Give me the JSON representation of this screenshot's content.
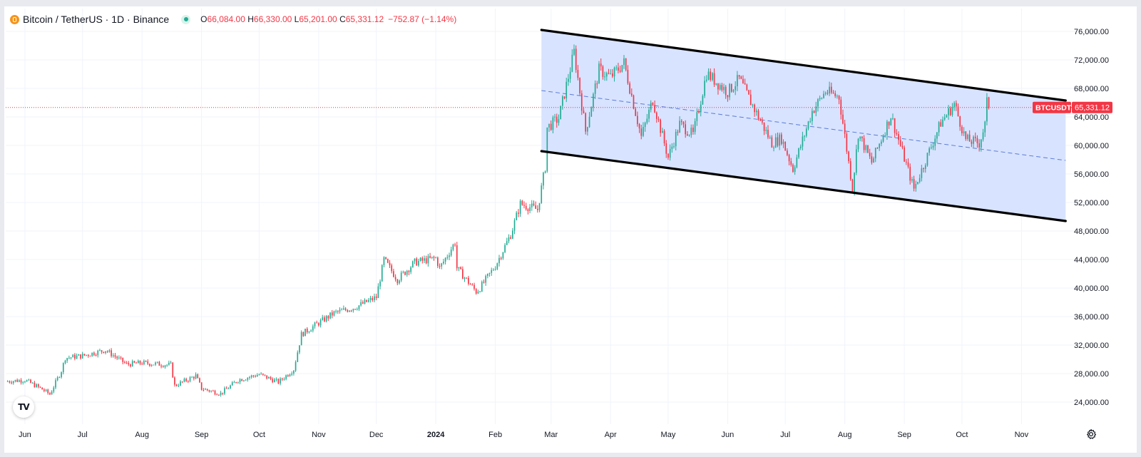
{
  "header": {
    "symbol": "Bitcoin / TetherUS · 1D · Binance",
    "open_label": "O",
    "open": "66,084.00",
    "high_label": "H",
    "high": "66,330.00",
    "low_label": "L",
    "low": "65,201.00",
    "close_label": "C",
    "close": "65,331.12",
    "change": "−752.87 (−1.14%)"
  },
  "price_tag": {
    "symbol": "BTCUSDT",
    "price": "65,331.12"
  },
  "colors": {
    "up": "#22ab94",
    "down": "#f23645",
    "channel_fill": "#d6e2ff",
    "channel_line": "#000000",
    "midline": "#5b7bd5",
    "grid": "#f0f3fa",
    "axis_text": "#131722"
  },
  "icons": {
    "logo": "tradingview-logo-icon",
    "settings": "gear-icon"
  },
  "chart_data": {
    "type": "candlestick",
    "title": "",
    "x_ticks": [
      {
        "label": "Jun",
        "date": "2023-06-01"
      },
      {
        "label": "Jul",
        "date": "2023-07-01"
      },
      {
        "label": "Aug",
        "date": "2023-08-01"
      },
      {
        "label": "Sep",
        "date": "2023-09-01"
      },
      {
        "label": "Oct",
        "date": "2023-10-01"
      },
      {
        "label": "Nov",
        "date": "2023-11-01"
      },
      {
        "label": "Dec",
        "date": "2023-12-01"
      },
      {
        "label": "2024",
        "date": "2024-01-01",
        "bold": true
      },
      {
        "label": "Feb",
        "date": "2024-02-01"
      },
      {
        "label": "Mar",
        "date": "2024-03-01"
      },
      {
        "label": "Apr",
        "date": "2024-04-01"
      },
      {
        "label": "May",
        "date": "2024-05-01"
      },
      {
        "label": "Jun",
        "date": "2024-06-01"
      },
      {
        "label": "Jul",
        "date": "2024-07-01"
      },
      {
        "label": "Aug",
        "date": "2024-08-01"
      },
      {
        "label": "Sep",
        "date": "2024-09-01"
      },
      {
        "label": "Oct",
        "date": "2024-10-01"
      },
      {
        "label": "Nov",
        "date": "2024-11-01"
      }
    ],
    "y_ticks": [
      "76,000.00",
      "72,000.00",
      "68,000.00",
      "64,000.00",
      "60,000.00",
      "56,000.00",
      "52,000.00",
      "48,000.00",
      "44,000.00",
      "40,000.00",
      "36,000.00",
      "32,000.00",
      "28,000.00",
      "24,000.00"
    ],
    "y_tick_values": [
      76000,
      72000,
      68000,
      64000,
      60000,
      56000,
      52000,
      48000,
      44000,
      40000,
      36000,
      32000,
      28000,
      24000
    ],
    "x_range": [
      "2023-05-22",
      "2024-11-25"
    ],
    "ylim": [
      20900,
      79200
    ],
    "grid": true,
    "last_price": 65331.12,
    "price_path": [
      [
        "2023-05-22",
        26900
      ],
      [
        "2023-06-01",
        27100
      ],
      [
        "2023-06-10",
        25800
      ],
      [
        "2023-06-14",
        25100
      ],
      [
        "2023-06-20",
        28400
      ],
      [
        "2023-06-22",
        30200
      ],
      [
        "2023-07-01",
        30500
      ],
      [
        "2023-07-13",
        31300
      ],
      [
        "2023-07-24",
        29300
      ],
      [
        "2023-08-01",
        29500
      ],
      [
        "2023-08-16",
        29200
      ],
      [
        "2023-08-18",
        26300
      ],
      [
        "2023-08-29",
        27700
      ],
      [
        "2023-09-01",
        25900
      ],
      [
        "2023-09-11",
        25200
      ],
      [
        "2023-09-20",
        27100
      ],
      [
        "2023-10-01",
        27900
      ],
      [
        "2023-10-11",
        26800
      ],
      [
        "2023-10-19",
        28600
      ],
      [
        "2023-10-23",
        33500
      ],
      [
        "2023-10-28",
        34400
      ],
      [
        "2023-11-09",
        36500
      ],
      [
        "2023-11-20",
        37300
      ],
      [
        "2023-12-01",
        38700
      ],
      [
        "2023-12-05",
        44000
      ],
      [
        "2023-12-12",
        41200
      ],
      [
        "2023-12-21",
        43600
      ],
      [
        "2024-01-01",
        44200
      ],
      [
        "2024-01-03",
        42800
      ],
      [
        "2024-01-11",
        46400
      ],
      [
        "2024-01-12",
        42800
      ],
      [
        "2024-01-22",
        39500
      ],
      [
        "2024-01-24",
        40000
      ],
      [
        "2024-02-01",
        43100
      ],
      [
        "2024-02-09",
        47500
      ],
      [
        "2024-02-14",
        51800
      ],
      [
        "2024-02-23",
        51000
      ],
      [
        "2024-02-27",
        57000
      ],
      [
        "2024-02-28",
        62500
      ],
      [
        "2024-03-05",
        63800
      ],
      [
        "2024-03-13",
        73100
      ],
      [
        "2024-03-19",
        62000
      ],
      [
        "2024-03-26",
        70600
      ],
      [
        "2024-04-01",
        69600
      ],
      [
        "2024-04-08",
        71600
      ],
      [
        "2024-04-17",
        61200
      ],
      [
        "2024-04-23",
        66400
      ],
      [
        "2024-05-01",
        58300
      ],
      [
        "2024-05-07",
        63000
      ],
      [
        "2024-05-14",
        61500
      ],
      [
        "2024-05-21",
        70100
      ],
      [
        "2024-06-01",
        67500
      ],
      [
        "2024-06-07",
        69300
      ],
      [
        "2024-06-24",
        60300
      ],
      [
        "2024-06-29",
        61000
      ],
      [
        "2024-07-05",
        56700
      ],
      [
        "2024-07-15",
        64800
      ],
      [
        "2024-07-22",
        67600
      ],
      [
        "2024-07-29",
        66800
      ],
      [
        "2024-08-05",
        54000
      ],
      [
        "2024-08-08",
        61700
      ],
      [
        "2024-08-15",
        57600
      ],
      [
        "2024-08-25",
        64200
      ],
      [
        "2024-09-06",
        53900
      ],
      [
        "2024-09-20",
        63200
      ],
      [
        "2024-09-27",
        65800
      ],
      [
        "2024-10-03",
        60800
      ],
      [
        "2024-10-10",
        60300
      ],
      [
        "2024-10-13",
        62900
      ],
      [
        "2024-10-14",
        66000
      ],
      [
        "2024-10-15",
        65331.12
      ]
    ],
    "overlays": {
      "channel_upper": [
        [
          "2024-02-25",
          76200
        ],
        [
          "2024-11-24",
          66300
        ]
      ],
      "channel_lower": [
        [
          "2024-02-25",
          59200
        ],
        [
          "2024-11-24",
          49400
        ]
      ],
      "channel_midline": [
        [
          "2024-02-25",
          67700
        ],
        [
          "2024-11-24",
          57900
        ]
      ]
    }
  }
}
